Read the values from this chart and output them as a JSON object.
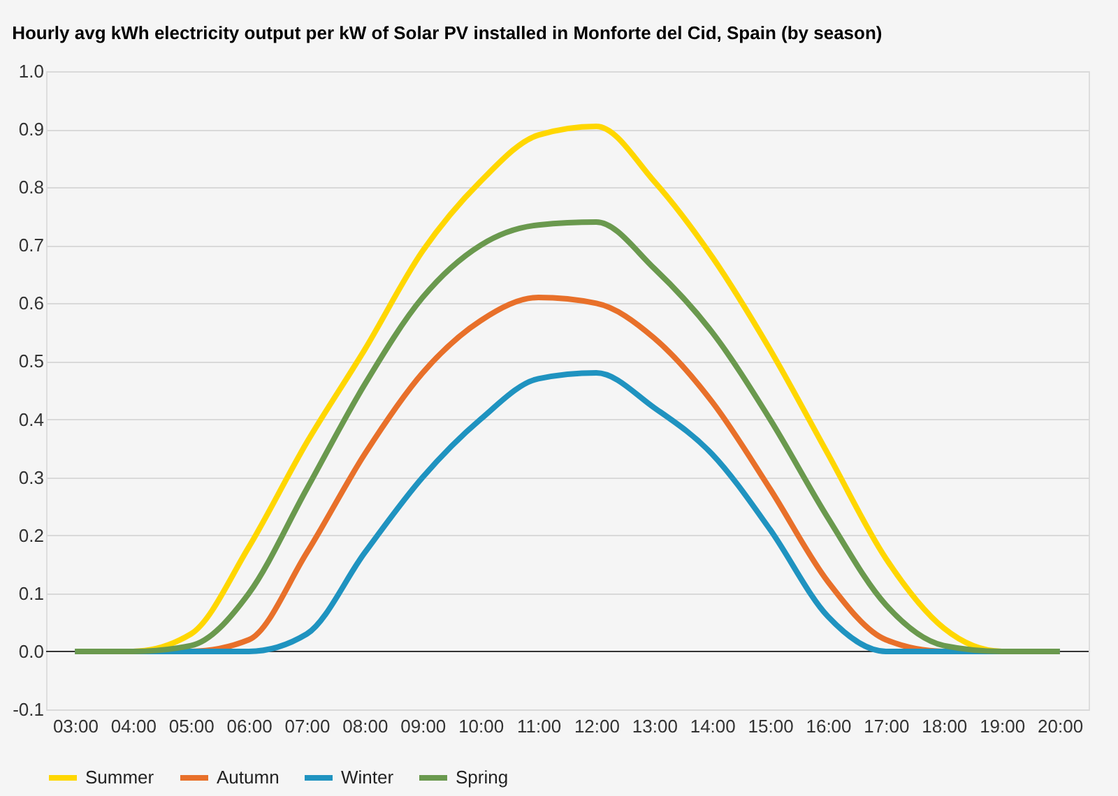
{
  "chart_data": {
    "type": "line",
    "title": "Hourly avg kWh electricity output per kW of Solar PV installed in Monforte del Cid, Spain (by season)",
    "x": [
      3,
      4,
      5,
      6,
      7,
      8,
      9,
      10,
      11,
      12,
      13,
      14,
      15,
      16,
      17,
      18,
      19,
      20
    ],
    "series": [
      {
        "name": "Summer",
        "color": "#ffd700",
        "values": [
          0,
          0,
          0.03,
          0.18,
          0.36,
          0.52,
          0.69,
          0.81,
          0.89,
          0.905,
          0.81,
          0.68,
          0.52,
          0.34,
          0.16,
          0.04,
          0,
          0
        ]
      },
      {
        "name": "Autumn",
        "color": "#e8702a",
        "values": [
          0,
          0,
          0,
          0.02,
          0.17,
          0.34,
          0.48,
          0.57,
          0.61,
          0.6,
          0.54,
          0.43,
          0.28,
          0.12,
          0.02,
          0,
          0,
          0
        ]
      },
      {
        "name": "Winter",
        "color": "#1f93c0",
        "values": [
          0,
          0,
          0,
          0,
          0.03,
          0.17,
          0.3,
          0.4,
          0.47,
          0.48,
          0.42,
          0.34,
          0.21,
          0.06,
          0,
          0,
          0,
          0
        ]
      },
      {
        "name": "Spring",
        "color": "#6a994e",
        "values": [
          0,
          0,
          0.01,
          0.1,
          0.28,
          0.46,
          0.61,
          0.7,
          0.735,
          0.74,
          0.66,
          0.55,
          0.4,
          0.23,
          0.08,
          0.01,
          0,
          0
        ]
      }
    ],
    "xlim": [
      2.5,
      20.5
    ],
    "xticks": [
      {
        "value": 3,
        "label": "03:00"
      },
      {
        "value": 4,
        "label": "04:00"
      },
      {
        "value": 5,
        "label": "05:00"
      },
      {
        "value": 6,
        "label": "06:00"
      },
      {
        "value": 7,
        "label": "07:00"
      },
      {
        "value": 8,
        "label": "08:00"
      },
      {
        "value": 9,
        "label": "09:00"
      },
      {
        "value": 10,
        "label": "10:00"
      },
      {
        "value": 11,
        "label": "11:00"
      },
      {
        "value": 12,
        "label": "12:00"
      },
      {
        "value": 13,
        "label": "13:00"
      },
      {
        "value": 14,
        "label": "14:00"
      },
      {
        "value": 15,
        "label": "15:00"
      },
      {
        "value": 16,
        "label": "16:00"
      },
      {
        "value": 17,
        "label": "17:00"
      },
      {
        "value": 18,
        "label": "18:00"
      },
      {
        "value": 19,
        "label": "19:00"
      },
      {
        "value": 20,
        "label": "20:00"
      }
    ],
    "ylim": [
      -0.1,
      1.0
    ],
    "yticks": [
      -0.1,
      {
        "value": 0,
        "label": "0.0"
      },
      0.1,
      0.2,
      0.3,
      0.4,
      0.5,
      0.6,
      0.7,
      0.8,
      0.9,
      {
        "value": 1.0,
        "label": "1.0"
      }
    ],
    "ref_lines": [
      {
        "axis": "y",
        "value": 0,
        "color": "#333333"
      }
    ],
    "grid": "y",
    "legend": "bottom",
    "marker": "none",
    "line_style": "solid"
  }
}
